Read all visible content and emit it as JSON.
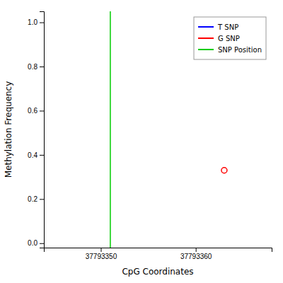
{
  "chart_data": {
    "type": "scatter",
    "xlabel": "CpG Coordinates",
    "ylabel": "Methylation Frequency",
    "xlim": [
      37793344,
      37793368
    ],
    "ylim": [
      -0.02,
      1.05
    ],
    "xticks": [
      37793350,
      37793360
    ],
    "yticks": [
      {
        "value": 0.0,
        "label": "0.0"
      },
      0.2,
      0.4,
      0.6,
      0.8,
      {
        "value": 1.0,
        "label": "1.0"
      }
    ],
    "grid": false,
    "legend": "upper-right",
    "series": [
      {
        "name": "T SNP",
        "type": "line",
        "color": "blue",
        "x": [],
        "values": []
      },
      {
        "name": "G SNP",
        "type": "scatter",
        "color": "red",
        "marker": "circle-open",
        "x": [
          37793363
        ],
        "values": [
          0.33
        ]
      },
      {
        "name": "SNP Position",
        "type": "vline",
        "color": "#00cc00",
        "x": [
          37793351
        ]
      }
    ]
  }
}
